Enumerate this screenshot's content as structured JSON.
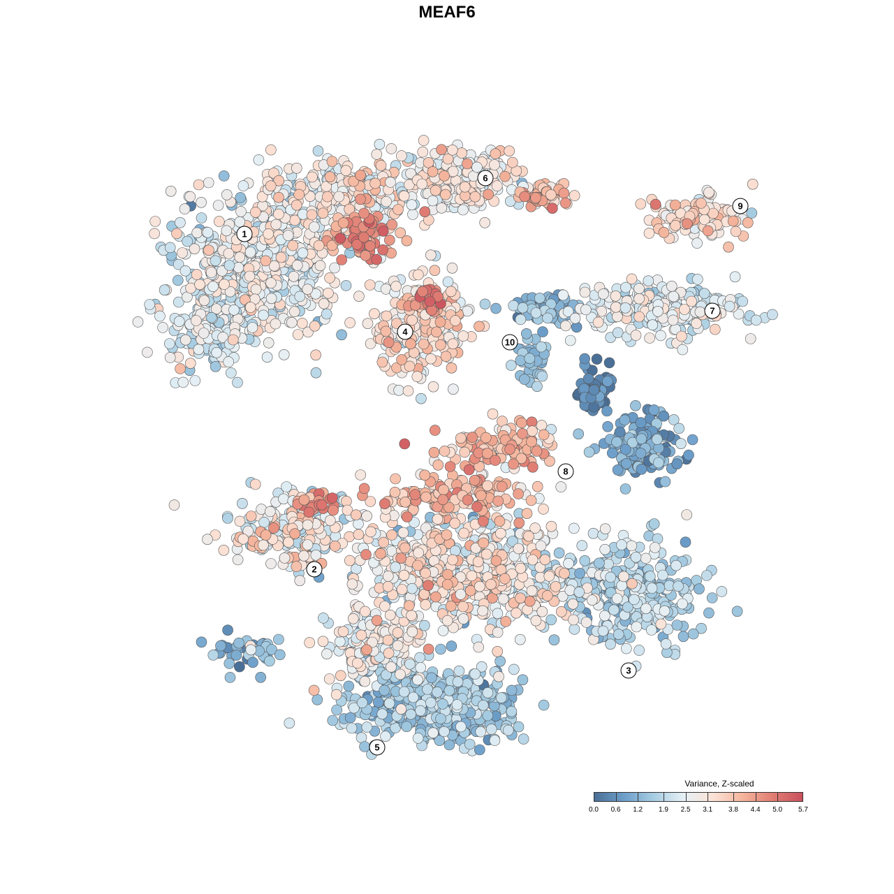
{
  "chart_data": {
    "type": "scatter",
    "title": "MEAF6",
    "legend": {
      "title": "Variance, Z-scaled",
      "placement": "bottom-right",
      "ticks": [
        "0.0",
        "0.6",
        "1.2",
        "1.9",
        "2.5",
        "3.1",
        "3.8",
        "4.4",
        "5.0",
        "5.7"
      ],
      "range": [
        0.0,
        5.7
      ],
      "colors": [
        "#4a6f97",
        "#6d9fca",
        "#a7cde2",
        "#e6f0f5",
        "#fbe2d6",
        "#f4b49b",
        "#e07d73",
        "#c9505d"
      ]
    },
    "clusters": [
      {
        "label": "1",
        "cx": -2.9,
        "cy": 2.85,
        "value": 2.4
      },
      {
        "label": "2",
        "cx": -1.9,
        "cy": -1.95,
        "value": 3.6
      },
      {
        "label": "3",
        "cx": 2.6,
        "cy": -3.4,
        "value": 1.9
      },
      {
        "label": "4",
        "cx": -0.6,
        "cy": 1.45,
        "value": 3.4
      },
      {
        "label": "5",
        "cx": -1.0,
        "cy": -4.5,
        "value": 1.5
      },
      {
        "label": "6",
        "cx": 0.55,
        "cy": 3.65,
        "value": 2.9
      },
      {
        "label": "7",
        "cx": 3.8,
        "cy": 1.75,
        "value": 2.4
      },
      {
        "label": "8",
        "cx": 1.7,
        "cy": -0.55,
        "value": 1.3
      },
      {
        "label": "9",
        "cx": 4.2,
        "cy": 3.25,
        "value": 3.4
      },
      {
        "label": "10",
        "cx": 0.9,
        "cy": 1.3,
        "value": 1.4
      }
    ],
    "grid": false,
    "axes": false
  }
}
